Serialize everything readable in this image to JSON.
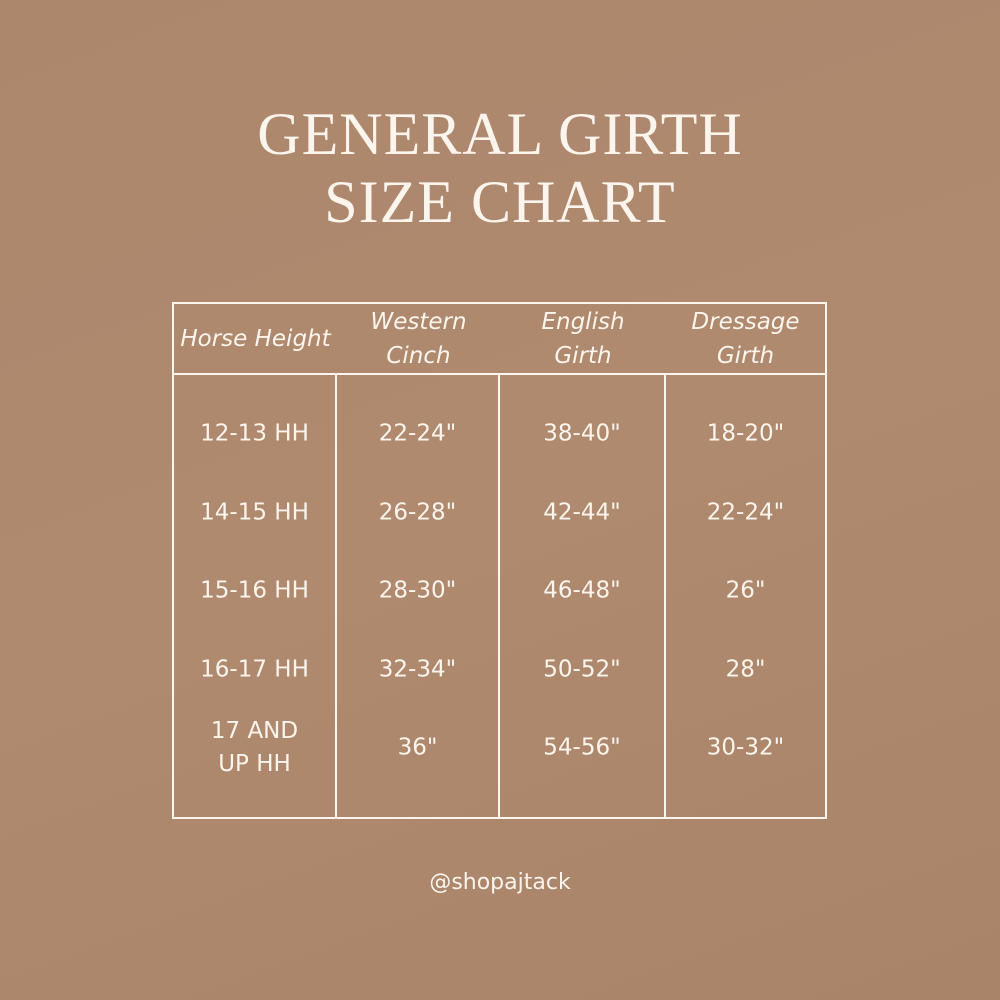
{
  "title_line1": "GENERAL GIRTH",
  "title_line2": "SIZE CHART",
  "table": {
    "headers": [
      [
        "Horse Height"
      ],
      [
        "Western",
        "Cinch"
      ],
      [
        "English",
        "Girth"
      ],
      [
        "Dressage",
        "Girth"
      ]
    ],
    "rows": [
      [
        [
          "12-13 HH"
        ],
        [
          "22-24\""
        ],
        [
          "38-40\""
        ],
        [
          "18-20\""
        ]
      ],
      [
        [
          "14-15 HH"
        ],
        [
          "26-28\""
        ],
        [
          "42-44\""
        ],
        [
          "22-24\""
        ]
      ],
      [
        [
          "15-16 HH"
        ],
        [
          "28-30\""
        ],
        [
          "46-48\""
        ],
        [
          "26\""
        ]
      ],
      [
        [
          "16-17 HH"
        ],
        [
          "32-34\""
        ],
        [
          "50-52\""
        ],
        [
          "28\""
        ]
      ],
      [
        [
          "17 AND",
          "UP HH"
        ],
        [
          "36\""
        ],
        [
          "54-56\""
        ],
        [
          "30-32\""
        ]
      ]
    ]
  },
  "handle": "@shopajtack",
  "colors": {
    "background": "#ad876c",
    "text": "#fbf5ee"
  }
}
